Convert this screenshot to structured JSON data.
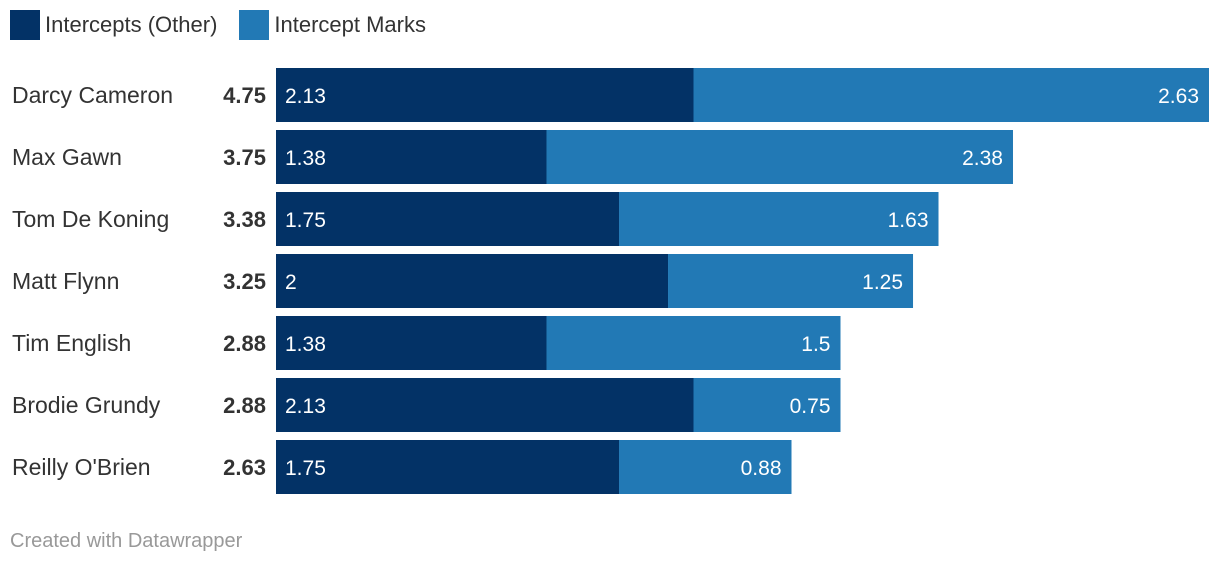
{
  "chart_data": {
    "type": "bar",
    "orientation": "horizontal",
    "stacked": true,
    "categories": [
      "Darcy Cameron",
      "Max Gawn",
      "Tom De Koning",
      "Matt Flynn",
      "Tim English",
      "Brodie Grundy",
      "Reilly O'Brien"
    ],
    "totals": [
      "4.75",
      "3.75",
      "3.38",
      "3.25",
      "2.88",
      "2.88",
      "2.63"
    ],
    "series": [
      {
        "name": "Intercepts (Other)",
        "color": "#033266",
        "values": [
          2.13,
          1.38,
          1.75,
          2,
          1.38,
          2.13,
          1.75
        ],
        "labels": [
          "2.13",
          "1.38",
          "1.75",
          "2",
          "1.38",
          "2.13",
          "1.75"
        ]
      },
      {
        "name": "Intercept Marks",
        "color": "#2279b5",
        "values": [
          2.63,
          2.38,
          1.63,
          1.25,
          1.5,
          0.75,
          0.88
        ],
        "labels": [
          "2.63",
          "2.38",
          "1.63",
          "1.25",
          "1.5",
          "0.75",
          "0.88"
        ]
      }
    ],
    "xlim": [
      0,
      4.76
    ],
    "grid": false,
    "legend_position": "top-left"
  },
  "footer": {
    "credit": "Created with Datawrapper"
  }
}
